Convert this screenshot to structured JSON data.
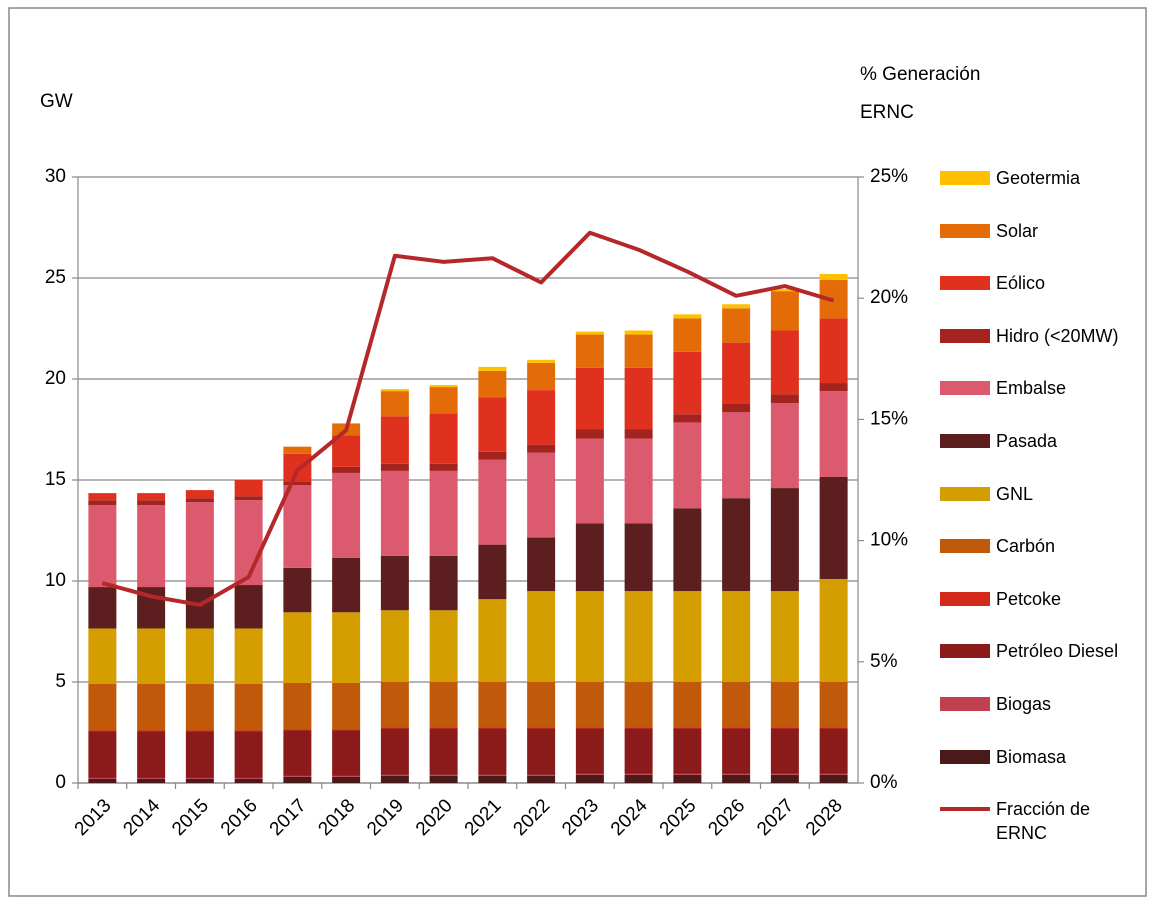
{
  "chart_data": {
    "type": "bar",
    "stacked": true,
    "y_label": "GW",
    "y2_label": [
      "% Generación",
      "ERNC"
    ],
    "categories": [
      "2013",
      "2014",
      "2015",
      "2016",
      "2017",
      "2018",
      "2019",
      "2020",
      "2021",
      "2022",
      "2023",
      "2024",
      "2025",
      "2026",
      "2027",
      "2028"
    ],
    "ylim": [
      0,
      30
    ],
    "yticks": [
      0,
      5,
      10,
      15,
      20,
      25,
      30
    ],
    "y2lim": [
      0,
      25
    ],
    "y2ticks": [
      {
        "value": 0,
        "label": "0%"
      },
      {
        "value": 5,
        "label": "5%"
      },
      {
        "value": 10,
        "label": "10%"
      },
      {
        "value": 15,
        "label": "15%"
      },
      {
        "value": 20,
        "label": "20%"
      },
      {
        "value": 25,
        "label": "25%"
      }
    ],
    "grid": true,
    "legend": "right",
    "series": [
      {
        "name": "Biomasa",
        "color": "#4A1A1A",
        "values": [
          0.2,
          0.2,
          0.2,
          0.2,
          0.3,
          0.3,
          0.35,
          0.35,
          0.35,
          0.35,
          0.4,
          0.4,
          0.4,
          0.4,
          0.4,
          0.4
        ]
      },
      {
        "name": "Biogas",
        "color": "#C0404F",
        "values": [
          0.05,
          0.05,
          0.05,
          0.05,
          0.05,
          0.05,
          0.05,
          0.05,
          0.05,
          0.05,
          0.05,
          0.05,
          0.05,
          0.05,
          0.05,
          0.05
        ]
      },
      {
        "name": "Petróleo Diesel",
        "color": "#8B1A1A",
        "values": [
          2.3,
          2.3,
          2.3,
          2.3,
          2.25,
          2.25,
          2.3,
          2.3,
          2.3,
          2.3,
          2.25,
          2.25,
          2.25,
          2.25,
          2.25,
          2.25
        ]
      },
      {
        "name": "Petcoke",
        "color": "#D42A1C",
        "values": [
          0.05,
          0.05,
          0.05,
          0.05,
          0.05,
          0.05,
          0.05,
          0.05,
          0.05,
          0.05,
          0.05,
          0.05,
          0.05,
          0.05,
          0.05,
          0.05
        ]
      },
      {
        "name": "Carbón",
        "color": "#C0590A",
        "values": [
          2.3,
          2.3,
          2.3,
          2.3,
          2.3,
          2.3,
          2.25,
          2.25,
          2.25,
          2.25,
          2.25,
          2.25,
          2.25,
          2.25,
          2.25,
          2.25
        ]
      },
      {
        "name": "GNL",
        "color": "#D49E00",
        "values": [
          2.75,
          2.75,
          2.75,
          2.75,
          3.5,
          3.5,
          3.55,
          3.55,
          4.1,
          4.5,
          4.5,
          4.5,
          4.5,
          4.5,
          4.5,
          5.1
        ]
      },
      {
        "name": "Pasada",
        "color": "#5C1E1E",
        "values": [
          2.05,
          2.05,
          2.05,
          2.15,
          2.2,
          2.7,
          2.7,
          2.7,
          2.7,
          2.65,
          3.35,
          3.35,
          4.1,
          4.6,
          5.1,
          5.05
        ]
      },
      {
        "name": "Embalse",
        "color": "#DC5A6E",
        "values": [
          4.05,
          4.05,
          4.2,
          4.2,
          4.1,
          4.2,
          4.2,
          4.2,
          4.2,
          4.2,
          4.2,
          4.2,
          4.25,
          4.25,
          4.2,
          4.25
        ]
      },
      {
        "name": "Hidro (<20MW)",
        "color": "#A5231F",
        "values": [
          0.25,
          0.25,
          0.2,
          0.2,
          0.15,
          0.3,
          0.35,
          0.35,
          0.4,
          0.4,
          0.45,
          0.45,
          0.4,
          0.45,
          0.45,
          0.4
        ]
      },
      {
        "name": "Eólico",
        "color": "#E0301E",
        "values": [
          0.35,
          0.35,
          0.4,
          0.8,
          1.4,
          1.55,
          2.35,
          2.5,
          2.7,
          2.7,
          3.05,
          3.05,
          3.1,
          3.0,
          3.15,
          3.2
        ]
      },
      {
        "name": "Solar",
        "color": "#E36C09",
        "values": [
          0,
          0,
          0,
          0,
          0.35,
          0.6,
          1.25,
          1.3,
          1.3,
          1.35,
          1.65,
          1.65,
          1.65,
          1.7,
          1.95,
          1.9
        ]
      },
      {
        "name": "Geotermia",
        "color": "#FFC000",
        "values": [
          0,
          0,
          0,
          0,
          0,
          0,
          0.1,
          0.1,
          0.2,
          0.15,
          0.15,
          0.2,
          0.2,
          0.2,
          0.1,
          0.3
        ]
      },
      {
        "name": "Fracción de ERNC",
        "color": "#B5282A",
        "type": "line",
        "axis": "y2",
        "values": [
          8.25,
          7.7,
          7.35,
          8.5,
          12.9,
          14.55,
          21.75,
          21.5,
          21.65,
          20.65,
          22.7,
          22.0,
          21.1,
          20.1,
          20.5,
          19.9
        ]
      }
    ]
  }
}
